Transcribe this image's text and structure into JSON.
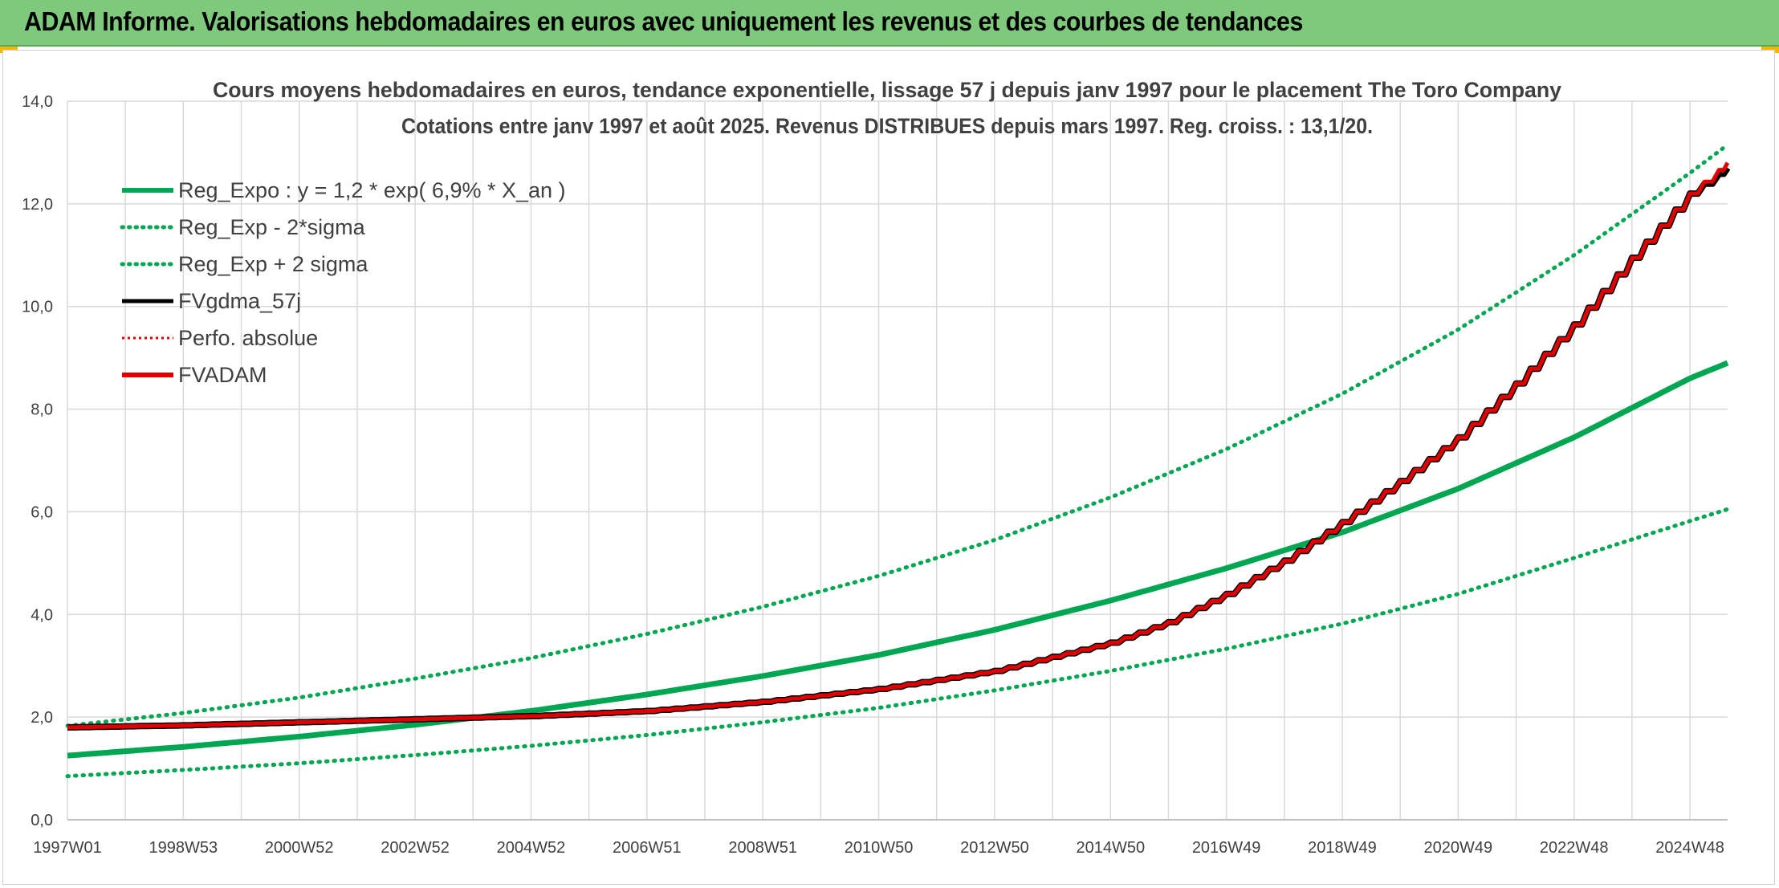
{
  "header": {
    "title": "ADAM Informe. Valorisations hebdomadaires en euros avec uniquement les revenus et des courbes de tendances"
  },
  "colors": {
    "banner": "#7fc97c",
    "reg_expo": "#00a651",
    "fv_gdma": "#000000",
    "perfo": "#e00000",
    "fvadam": "#e00000",
    "grid": "#d9d9d9"
  },
  "chart_data": {
    "type": "line",
    "title": "Cours moyens hebdomadaires en euros, tendance exponentielle, lissage 57 j depuis janv 1997 pour le placement The Toro Company",
    "subtitle": "Cotations entre janv 1997 et août 2025. Revenus DISTRIBUES depuis mars 1997. Reg. croiss. : 13,1/20.",
    "xlabel": "",
    "ylabel": "",
    "ylim": [
      0,
      14
    ],
    "yticks": [
      "0,0",
      "2,0",
      "4,0",
      "6,0",
      "8,0",
      "10,0",
      "12,0",
      "14,0"
    ],
    "xlim_years": [
      1997.0,
      2025.65
    ],
    "xticks": [
      {
        "label": "1997W01",
        "year": 1997.0
      },
      {
        "label": "1998W53",
        "year": 1999.0
      },
      {
        "label": "2000W52",
        "year": 2001.0
      },
      {
        "label": "2002W52",
        "year": 2003.0
      },
      {
        "label": "2004W52",
        "year": 2005.0
      },
      {
        "label": "2006W51",
        "year": 2007.0
      },
      {
        "label": "2008W51",
        "year": 2009.0
      },
      {
        "label": "2010W50",
        "year": 2011.0
      },
      {
        "label": "2012W50",
        "year": 2013.0
      },
      {
        "label": "2014W50",
        "year": 2015.0
      },
      {
        "label": "2016W49",
        "year": 2017.0
      },
      {
        "label": "2018W49",
        "year": 2019.0
      },
      {
        "label": "2020W49",
        "year": 2021.0
      },
      {
        "label": "2022W48",
        "year": 2023.0
      },
      {
        "label": "2024W48",
        "year": 2025.0
      }
    ],
    "grid": true,
    "legend_position": "top-left",
    "legend": [
      {
        "name": "Reg_Expo : y = 1,2 * exp( 6,9% *  X_an )",
        "style": "solid-green"
      },
      {
        "name": "Reg_Exp - 2*sigma",
        "style": "dotted-green"
      },
      {
        "name": "Reg_Exp + 2 sigma",
        "style": "dotted-green"
      },
      {
        "name": "FVgdma_57j",
        "style": "solid-black"
      },
      {
        "name": "Perfo. absolue",
        "style": "dotted-red"
      },
      {
        "name": "FVADAM",
        "style": "solid-red"
      }
    ],
    "series": [
      {
        "name": "Reg_Expo : y = 1,2 * exp( 6,9% *  X_an )",
        "x": [
          1997,
          1999,
          2001,
          2003,
          2005,
          2007,
          2009,
          2011,
          2013,
          2015,
          2017,
          2019,
          2021,
          2023,
          2025,
          2025.65
        ],
        "y": [
          1.25,
          1.42,
          1.62,
          1.85,
          2.12,
          2.44,
          2.8,
          3.21,
          3.7,
          4.27,
          4.9,
          5.6,
          6.45,
          7.45,
          8.6,
          8.9
        ]
      },
      {
        "name": "Reg_Exp - 2*sigma",
        "x": [
          1997,
          1999,
          2001,
          2003,
          2005,
          2007,
          2009,
          2011,
          2013,
          2015,
          2017,
          2019,
          2021,
          2023,
          2025,
          2025.65
        ],
        "y": [
          0.85,
          0.97,
          1.1,
          1.26,
          1.44,
          1.65,
          1.9,
          2.18,
          2.52,
          2.9,
          3.33,
          3.82,
          4.4,
          5.1,
          5.82,
          6.05
        ]
      },
      {
        "name": "Reg_Exp + 2 sigma",
        "x": [
          1997,
          1999,
          2001,
          2003,
          2005,
          2007,
          2009,
          2011,
          2013,
          2015,
          2017,
          2019,
          2021,
          2023,
          2025,
          2025.65
        ],
        "y": [
          1.83,
          2.08,
          2.38,
          2.75,
          3.15,
          3.62,
          4.15,
          4.75,
          5.45,
          6.28,
          7.22,
          8.3,
          9.55,
          11.0,
          12.6,
          13.15
        ]
      },
      {
        "name": "FVgdma_57j",
        "x": [
          1997,
          1999,
          2001,
          2003,
          2005,
          2007,
          2009,
          2011,
          2013,
          2015,
          2016,
          2017,
          2018,
          2019,
          2020,
          2021,
          2022,
          2023,
          2024,
          2025,
          2025.65
        ],
        "y": [
          1.8,
          1.84,
          1.9,
          1.96,
          2.02,
          2.12,
          2.3,
          2.55,
          2.9,
          3.45,
          3.85,
          4.4,
          5.05,
          5.8,
          6.6,
          7.45,
          8.5,
          9.65,
          10.95,
          12.2,
          12.7
        ]
      },
      {
        "name": "Perfo. absolue",
        "x": [
          1997,
          1999,
          2001,
          2003,
          2005,
          2007,
          2009,
          2011,
          2013,
          2015,
          2016,
          2017,
          2018,
          2019,
          2020,
          2021,
          2022,
          2023,
          2024,
          2025,
          2025.65
        ],
        "y": [
          1.8,
          1.84,
          1.9,
          1.96,
          2.02,
          2.12,
          2.3,
          2.55,
          2.9,
          3.45,
          3.85,
          4.4,
          5.05,
          5.8,
          6.6,
          7.45,
          8.5,
          9.65,
          10.95,
          12.2,
          12.75
        ]
      },
      {
        "name": "FVADAM",
        "x": [
          1997,
          1999,
          2001,
          2003,
          2005,
          2007,
          2009,
          2011,
          2013,
          2015,
          2016,
          2017,
          2018,
          2019,
          2020,
          2021,
          2022,
          2023,
          2024,
          2025,
          2025.65
        ],
        "y": [
          1.8,
          1.84,
          1.9,
          1.96,
          2.02,
          2.12,
          2.3,
          2.55,
          2.9,
          3.45,
          3.85,
          4.4,
          5.05,
          5.8,
          6.6,
          7.45,
          8.5,
          9.65,
          10.95,
          12.2,
          12.8
        ]
      }
    ]
  }
}
